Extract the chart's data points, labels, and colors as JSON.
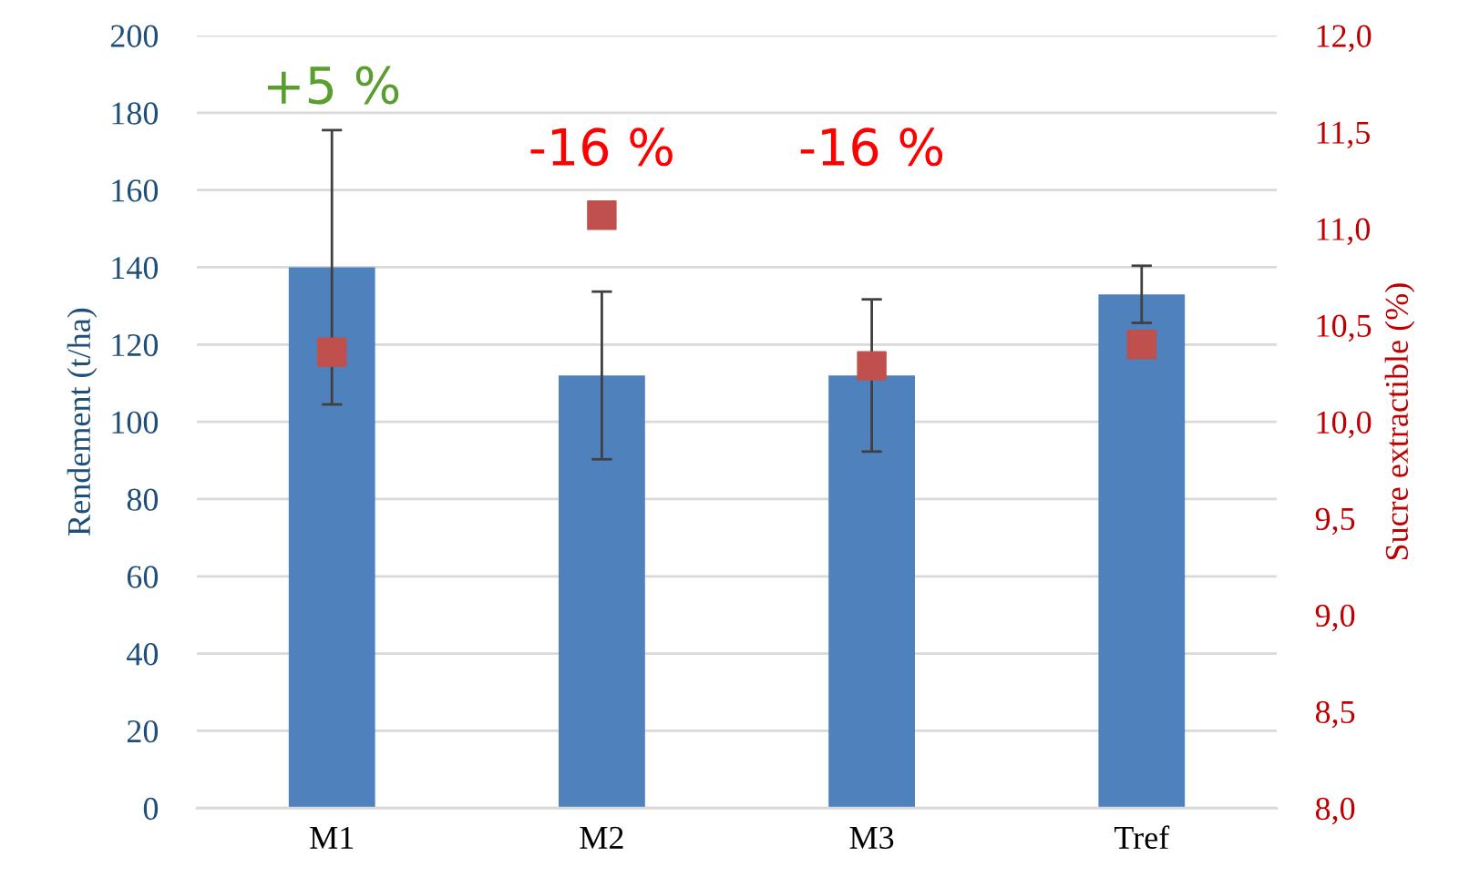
{
  "chart_data": {
    "type": "bar",
    "ylabel": "Rendement (t/ha)",
    "y2label": "Sucre extractible (%)",
    "categories": [
      "M1",
      "M2",
      "M3",
      "Tref"
    ],
    "series": [
      {
        "color": "#4f81bd",
        "values": [
          140,
          112,
          112,
          133
        ],
        "errors": [
          35.5,
          21.7,
          19.7,
          7.4
        ]
      },
      {
        "type": "scatter",
        "axis": "y2",
        "color": "#c0504d",
        "marker": "square",
        "values": [
          10.36,
          11.07,
          10.29,
          10.4
        ]
      }
    ],
    "ylim": [
      0,
      200
    ],
    "yticks": [
      0,
      20,
      40,
      60,
      80,
      100,
      120,
      140,
      160,
      180,
      200
    ],
    "y2lim": [
      8,
      12
    ],
    "y2ticks": [
      {
        "value": 8,
        "label": "8,0"
      },
      {
        "value": 8.5,
        "label": "8,5"
      },
      {
        "value": 9,
        "label": "9,0"
      },
      {
        "value": 9.5,
        "label": "9,5"
      },
      {
        "value": 10,
        "label": "10,0"
      },
      {
        "value": 10.5,
        "label": "10,5"
      },
      {
        "value": 11,
        "label": "11,0"
      },
      {
        "value": 11.5,
        "label": "11,5"
      },
      {
        "value": 12,
        "label": "12,0"
      }
    ],
    "grid": "y",
    "annotations": [
      "+5 %",
      "-16 %",
      "-16 %"
    ]
  }
}
